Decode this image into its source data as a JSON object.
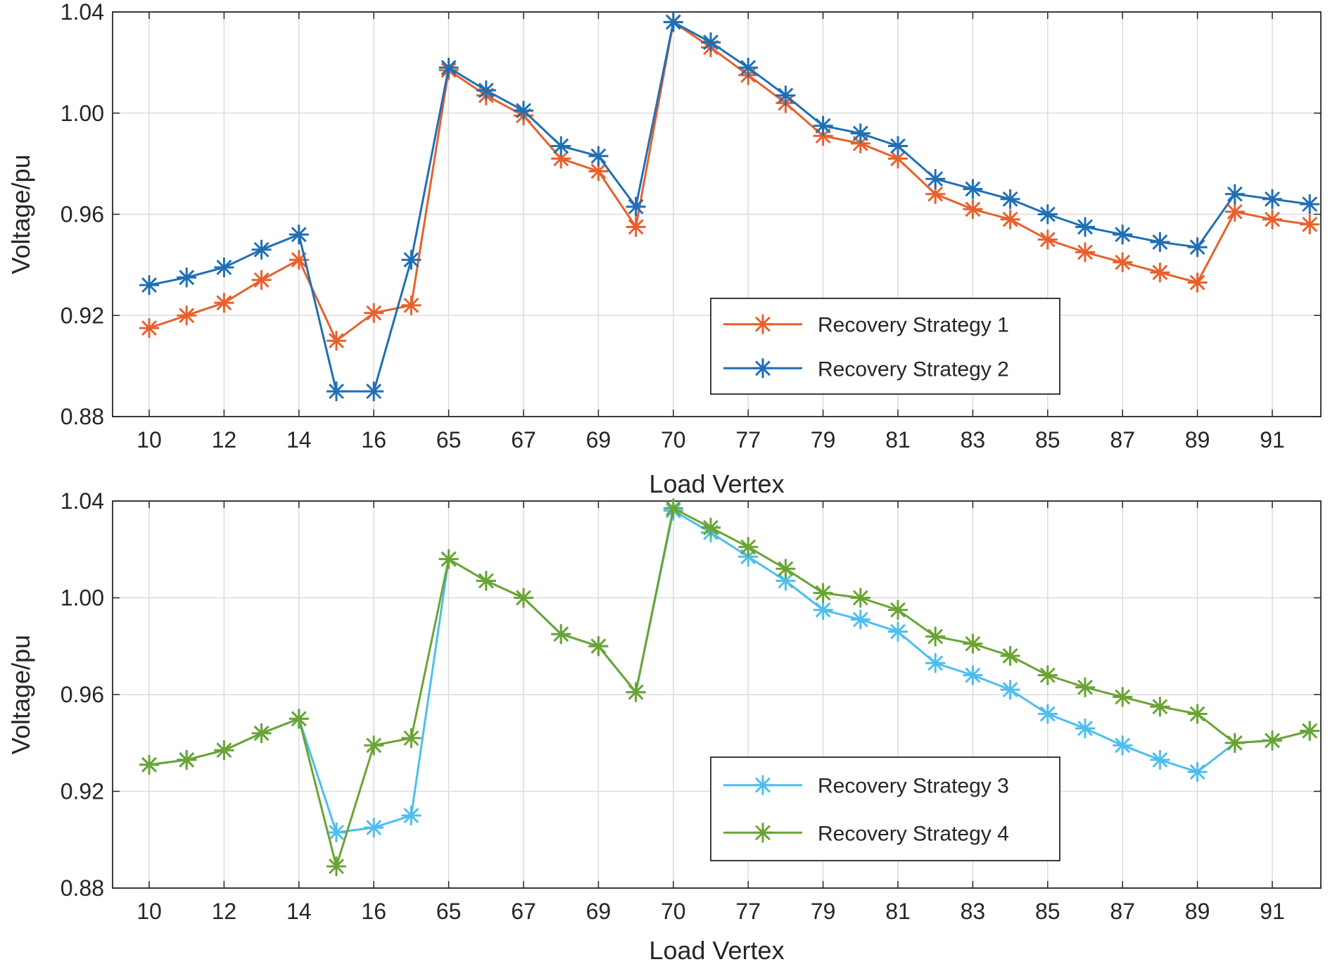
{
  "chart_data": [
    {
      "type": "line",
      "xlabel": "Load Vertex",
      "ylabel": "Voltage/pu",
      "x_tick_labels": [
        "10",
        "12",
        "14",
        "16",
        "65",
        "67",
        "69",
        "70",
        "77",
        "79",
        "81",
        "83",
        "85",
        "87",
        "89",
        "91"
      ],
      "ylim": [
        0.88,
        1.04
      ],
      "y_ticks": [
        0.88,
        0.92,
        0.96,
        1.0,
        1.04
      ],
      "y_tick_labels": [
        "0.88",
        "0.92",
        "0.96",
        "1.00",
        "1.04"
      ],
      "grid": true,
      "legend_position": "lower-right",
      "series": [
        {
          "name": "Recovery Strategy 1",
          "color": "#e8602c",
          "values": [
            0.915,
            0.92,
            0.925,
            0.934,
            0.942,
            0.91,
            0.921,
            0.924,
            1.017,
            1.007,
            0.999,
            0.982,
            0.977,
            0.955,
            1.036,
            1.026,
            1.015,
            1.004,
            0.991,
            0.988,
            0.982,
            0.968,
            0.962,
            0.958,
            0.95,
            0.945,
            0.941,
            0.937,
            0.933,
            0.961,
            0.958,
            0.956
          ]
        },
        {
          "name": "Recovery Strategy 2",
          "color": "#1f6fb5",
          "values": [
            0.932,
            0.935,
            0.939,
            0.946,
            0.952,
            0.89,
            0.89,
            0.942,
            1.018,
            1.009,
            1.001,
            0.987,
            0.983,
            0.963,
            1.036,
            1.028,
            1.018,
            1.007,
            0.995,
            0.992,
            0.987,
            0.974,
            0.97,
            0.966,
            0.96,
            0.955,
            0.952,
            0.949,
            0.947,
            0.968,
            0.966,
            0.964
          ]
        }
      ]
    },
    {
      "type": "line",
      "xlabel": "Load Vertex",
      "ylabel": "Voltage/pu",
      "x_tick_labels": [
        "10",
        "12",
        "14",
        "16",
        "65",
        "67",
        "69",
        "70",
        "77",
        "79",
        "81",
        "83",
        "85",
        "87",
        "89",
        "91"
      ],
      "ylim": [
        0.88,
        1.04
      ],
      "y_ticks": [
        0.88,
        0.92,
        0.96,
        1.0,
        1.04
      ],
      "y_tick_labels": [
        "0.88",
        "0.92",
        "0.96",
        "1.00",
        "1.04"
      ],
      "grid": true,
      "legend_position": "lower-right",
      "series": [
        {
          "name": "Recovery Strategy 3",
          "color": "#4dbeee",
          "values": [
            0.931,
            0.933,
            0.937,
            0.944,
            0.95,
            0.903,
            0.905,
            0.91,
            1.016,
            1.007,
            1.0,
            0.985,
            0.98,
            0.961,
            1.036,
            1.027,
            1.017,
            1.007,
            0.995,
            0.991,
            0.986,
            0.973,
            0.968,
            0.962,
            0.952,
            0.946,
            0.939,
            0.933,
            0.928,
            0.94,
            0.941,
            0.945
          ]
        },
        {
          "name": "Recovery Strategy 4",
          "color": "#6aa433",
          "values": [
            0.931,
            0.933,
            0.937,
            0.944,
            0.95,
            0.889,
            0.939,
            0.942,
            1.016,
            1.007,
            1.0,
            0.985,
            0.98,
            0.961,
            1.037,
            1.029,
            1.021,
            1.012,
            1.002,
            1.0,
            0.995,
            0.984,
            0.981,
            0.976,
            0.968,
            0.963,
            0.959,
            0.955,
            0.952,
            0.94,
            0.941,
            0.945
          ]
        }
      ]
    }
  ]
}
